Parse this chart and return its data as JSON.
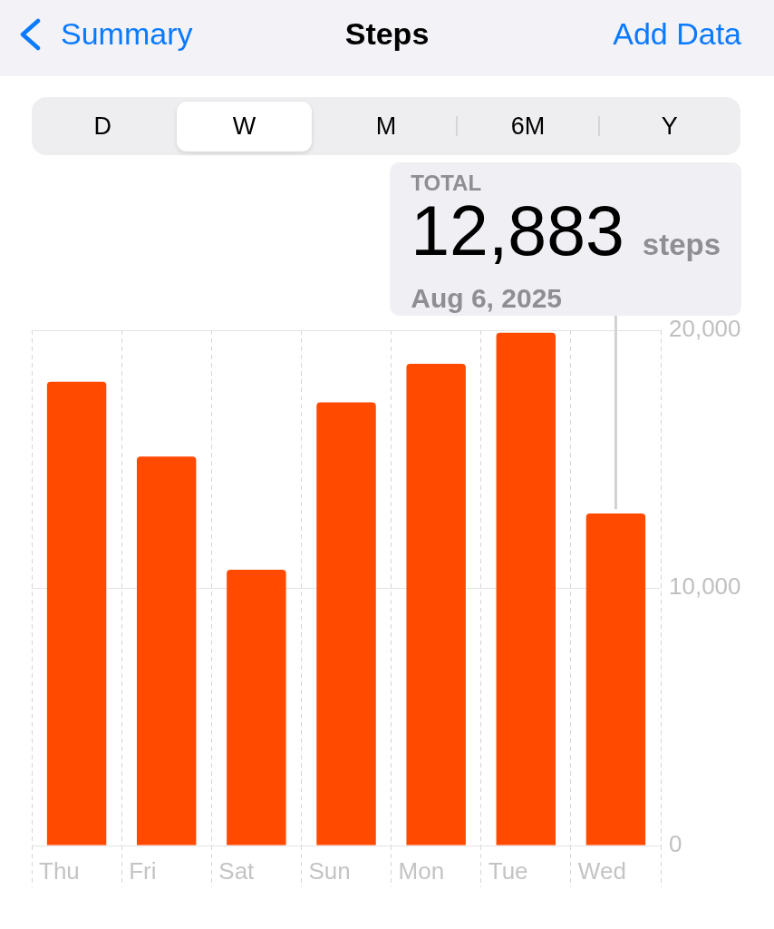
{
  "chart_data": {
    "type": "bar",
    "title": "Steps",
    "categories": [
      "Thu",
      "Fri",
      "Sat",
      "Sun",
      "Mon",
      "Tue",
      "Wed"
    ],
    "values": [
      18000,
      15100,
      10700,
      17200,
      18700,
      19900,
      12883
    ],
    "color": "#ff4a00",
    "ylim": [
      0,
      20000
    ],
    "yticks": [
      0,
      {
        "value": 10000,
        "label": "10,000"
      },
      {
        "value": 20000,
        "label": "20,000"
      }
    ],
    "grid": true,
    "annotations": [
      "Summary",
      "Add Data",
      "D",
      "W",
      "M",
      "6M",
      "Y",
      "TOTAL",
      "12,883",
      "steps",
      "Aug 6, 2025"
    ]
  }
}
